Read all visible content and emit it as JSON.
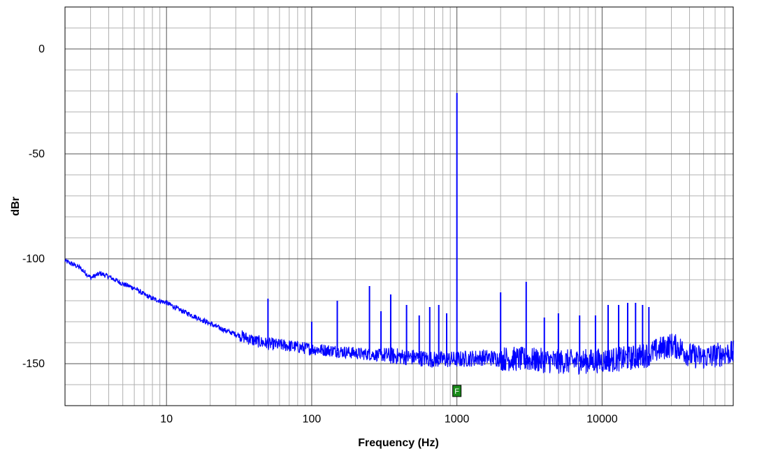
{
  "chart_data": {
    "type": "line",
    "xlabel": "Frequency (Hz)",
    "ylabel": "dBr",
    "x_scale": "log",
    "xlim": [
      2,
      80000
    ],
    "ylim": [
      -170,
      20
    ],
    "x_ticks": [
      {
        "value": 10,
        "label": "10"
      },
      {
        "value": 100,
        "label": "100"
      },
      {
        "value": 1000,
        "label": "1000"
      },
      {
        "value": 10000,
        "label": "10000"
      }
    ],
    "y_ticks": [
      {
        "value": 0,
        "label": "0"
      },
      {
        "value": -50,
        "label": "-50"
      },
      {
        "value": -100,
        "label": "-100"
      },
      {
        "value": -150,
        "label": "-150"
      }
    ],
    "grid": true,
    "series_color": "#0000ff",
    "noise_floor": [
      [
        2,
        -101
      ],
      [
        2.5,
        -104
      ],
      [
        3,
        -109
      ],
      [
        3.5,
        -107
      ],
      [
        4,
        -108.5
      ],
      [
        5,
        -112
      ],
      [
        6,
        -114
      ],
      [
        7,
        -117
      ],
      [
        8,
        -119
      ],
      [
        10,
        -121
      ],
      [
        12,
        -124
      ],
      [
        15,
        -127
      ],
      [
        20,
        -131
      ],
      [
        25,
        -134
      ],
      [
        30,
        -136
      ],
      [
        40,
        -139
      ],
      [
        50,
        -140.5
      ],
      [
        70,
        -141.5
      ],
      [
        100,
        -143
      ],
      [
        150,
        -144
      ],
      [
        200,
        -145
      ],
      [
        300,
        -146
      ],
      [
        500,
        -147
      ],
      [
        700,
        -148
      ],
      [
        1000,
        -148
      ],
      [
        1500,
        -147
      ],
      [
        2000,
        -147.5
      ],
      [
        3000,
        -148
      ],
      [
        5000,
        -149
      ],
      [
        7000,
        -149
      ],
      [
        10000,
        -148.5
      ],
      [
        15000,
        -147.5
      ],
      [
        20000,
        -146
      ],
      [
        25000,
        -143
      ],
      [
        30000,
        -141
      ],
      [
        35000,
        -143
      ],
      [
        40000,
        -146
      ],
      [
        50000,
        -147
      ],
      [
        60000,
        -146
      ],
      [
        70000,
        -145
      ],
      [
        80000,
        -145
      ]
    ],
    "spikes": [
      {
        "x": 50,
        "y": -119
      },
      {
        "x": 100,
        "y": -130
      },
      {
        "x": 150,
        "y": -120
      },
      {
        "x": 250,
        "y": -113
      },
      {
        "x": 300,
        "y": -125
      },
      {
        "x": 350,
        "y": -117
      },
      {
        "x": 450,
        "y": -122
      },
      {
        "x": 550,
        "y": -127
      },
      {
        "x": 650,
        "y": -123
      },
      {
        "x": 750,
        "y": -122
      },
      {
        "x": 850,
        "y": -126
      },
      {
        "x": 1000,
        "y": -21
      },
      {
        "x": 2000,
        "y": -116
      },
      {
        "x": 3000,
        "y": -111
      },
      {
        "x": 4000,
        "y": -128
      },
      {
        "x": 5000,
        "y": -126
      },
      {
        "x": 7000,
        "y": -127
      },
      {
        "x": 9000,
        "y": -127
      },
      {
        "x": 11000,
        "y": -122
      },
      {
        "x": 13000,
        "y": -122
      },
      {
        "x": 15000,
        "y": -121
      },
      {
        "x": 17000,
        "y": -121
      },
      {
        "x": 19000,
        "y": -122
      },
      {
        "x": 21000,
        "y": -123
      }
    ],
    "marker": {
      "label": "F",
      "x": 1000,
      "y": -163,
      "color": "#1a8c1a"
    }
  }
}
